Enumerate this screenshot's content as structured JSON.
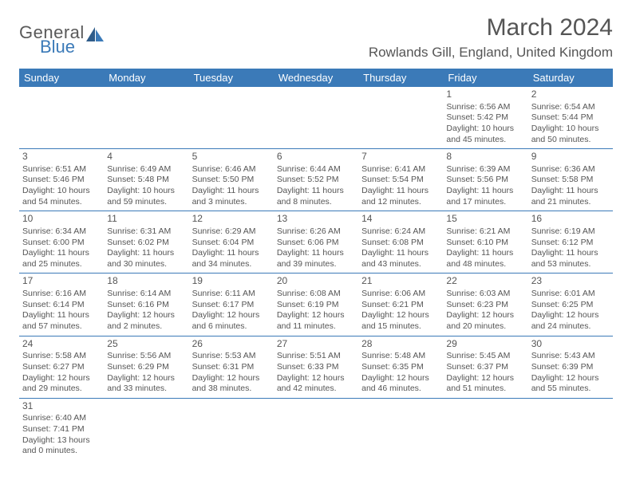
{
  "logo": {
    "text1": "General",
    "text2": "Blue"
  },
  "title": "March 2024",
  "location": "Rowlands Gill, England, United Kingdom",
  "colors": {
    "header_bg": "#3b7ab8",
    "header_fg": "#ffffff",
    "border": "#3b7ab8",
    "text": "#555555"
  },
  "weekdays": [
    "Sunday",
    "Monday",
    "Tuesday",
    "Wednesday",
    "Thursday",
    "Friday",
    "Saturday"
  ],
  "weeks": [
    [
      null,
      null,
      null,
      null,
      null,
      {
        "d": "1",
        "sr": "6:56 AM",
        "ss": "5:42 PM",
        "dh": "10",
        "dm": "45"
      },
      {
        "d": "2",
        "sr": "6:54 AM",
        "ss": "5:44 PM",
        "dh": "10",
        "dm": "50"
      }
    ],
    [
      {
        "d": "3",
        "sr": "6:51 AM",
        "ss": "5:46 PM",
        "dh": "10",
        "dm": "54"
      },
      {
        "d": "4",
        "sr": "6:49 AM",
        "ss": "5:48 PM",
        "dh": "10",
        "dm": "59"
      },
      {
        "d": "5",
        "sr": "6:46 AM",
        "ss": "5:50 PM",
        "dh": "11",
        "dm": "3"
      },
      {
        "d": "6",
        "sr": "6:44 AM",
        "ss": "5:52 PM",
        "dh": "11",
        "dm": "8"
      },
      {
        "d": "7",
        "sr": "6:41 AM",
        "ss": "5:54 PM",
        "dh": "11",
        "dm": "12"
      },
      {
        "d": "8",
        "sr": "6:39 AM",
        "ss": "5:56 PM",
        "dh": "11",
        "dm": "17"
      },
      {
        "d": "9",
        "sr": "6:36 AM",
        "ss": "5:58 PM",
        "dh": "11",
        "dm": "21"
      }
    ],
    [
      {
        "d": "10",
        "sr": "6:34 AM",
        "ss": "6:00 PM",
        "dh": "11",
        "dm": "25"
      },
      {
        "d": "11",
        "sr": "6:31 AM",
        "ss": "6:02 PM",
        "dh": "11",
        "dm": "30"
      },
      {
        "d": "12",
        "sr": "6:29 AM",
        "ss": "6:04 PM",
        "dh": "11",
        "dm": "34"
      },
      {
        "d": "13",
        "sr": "6:26 AM",
        "ss": "6:06 PM",
        "dh": "11",
        "dm": "39"
      },
      {
        "d": "14",
        "sr": "6:24 AM",
        "ss": "6:08 PM",
        "dh": "11",
        "dm": "43"
      },
      {
        "d": "15",
        "sr": "6:21 AM",
        "ss": "6:10 PM",
        "dh": "11",
        "dm": "48"
      },
      {
        "d": "16",
        "sr": "6:19 AM",
        "ss": "6:12 PM",
        "dh": "11",
        "dm": "53"
      }
    ],
    [
      {
        "d": "17",
        "sr": "6:16 AM",
        "ss": "6:14 PM",
        "dh": "11",
        "dm": "57"
      },
      {
        "d": "18",
        "sr": "6:14 AM",
        "ss": "6:16 PM",
        "dh": "12",
        "dm": "2"
      },
      {
        "d": "19",
        "sr": "6:11 AM",
        "ss": "6:17 PM",
        "dh": "12",
        "dm": "6"
      },
      {
        "d": "20",
        "sr": "6:08 AM",
        "ss": "6:19 PM",
        "dh": "12",
        "dm": "11"
      },
      {
        "d": "21",
        "sr": "6:06 AM",
        "ss": "6:21 PM",
        "dh": "12",
        "dm": "15"
      },
      {
        "d": "22",
        "sr": "6:03 AM",
        "ss": "6:23 PM",
        "dh": "12",
        "dm": "20"
      },
      {
        "d": "23",
        "sr": "6:01 AM",
        "ss": "6:25 PM",
        "dh": "12",
        "dm": "24"
      }
    ],
    [
      {
        "d": "24",
        "sr": "5:58 AM",
        "ss": "6:27 PM",
        "dh": "12",
        "dm": "29"
      },
      {
        "d": "25",
        "sr": "5:56 AM",
        "ss": "6:29 PM",
        "dh": "12",
        "dm": "33"
      },
      {
        "d": "26",
        "sr": "5:53 AM",
        "ss": "6:31 PM",
        "dh": "12",
        "dm": "38"
      },
      {
        "d": "27",
        "sr": "5:51 AM",
        "ss": "6:33 PM",
        "dh": "12",
        "dm": "42"
      },
      {
        "d": "28",
        "sr": "5:48 AM",
        "ss": "6:35 PM",
        "dh": "12",
        "dm": "46"
      },
      {
        "d": "29",
        "sr": "5:45 AM",
        "ss": "6:37 PM",
        "dh": "12",
        "dm": "51"
      },
      {
        "d": "30",
        "sr": "5:43 AM",
        "ss": "6:39 PM",
        "dh": "12",
        "dm": "55"
      }
    ],
    [
      {
        "d": "31",
        "sr": "6:40 AM",
        "ss": "7:41 PM",
        "dh": "13",
        "dm": "0"
      },
      null,
      null,
      null,
      null,
      null,
      null
    ]
  ]
}
